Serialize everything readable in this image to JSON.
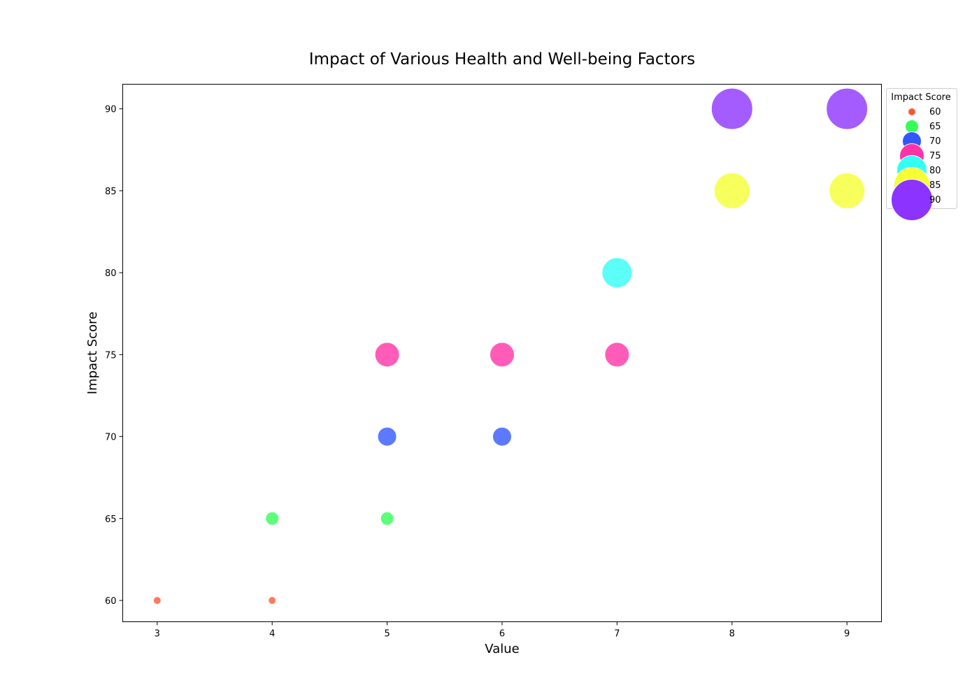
{
  "chart_data": {
    "type": "scatter",
    "title": "Impact of Various Health and Well-being Factors",
    "xlabel": "Value",
    "ylabel": "Impact Score",
    "xlim": [
      2.7,
      9.3
    ],
    "ylim": [
      58.7,
      91.5
    ],
    "xticks": [
      3,
      4,
      5,
      6,
      7,
      8,
      9
    ],
    "yticks": [
      60,
      65,
      70,
      75,
      80,
      85,
      90
    ],
    "grid": false,
    "marker_size_by": "Impact Score",
    "marker_color_by": "Impact Score",
    "legend": {
      "title": "Impact Score",
      "placement": "outside-top-right",
      "entries": [
        60,
        65,
        70,
        75,
        80,
        85,
        90
      ]
    },
    "colors": {
      "60": "#ff5733",
      "65": "#33ff57",
      "70": "#3357ff",
      "75": "#ff33a8",
      "80": "#33fff5",
      "85": "#f5ff33",
      "90": "#8d33ff"
    },
    "point_alpha": 0.8,
    "points": [
      {
        "x": 3,
        "y": 60
      },
      {
        "x": 4,
        "y": 60
      },
      {
        "x": 4,
        "y": 65
      },
      {
        "x": 5,
        "y": 65
      },
      {
        "x": 5,
        "y": 70
      },
      {
        "x": 6,
        "y": 70
      },
      {
        "x": 5,
        "y": 75
      },
      {
        "x": 6,
        "y": 75
      },
      {
        "x": 7,
        "y": 75
      },
      {
        "x": 7,
        "y": 80
      },
      {
        "x": 8,
        "y": 85
      },
      {
        "x": 9,
        "y": 85
      },
      {
        "x": 8,
        "y": 90
      },
      {
        "x": 9,
        "y": 90
      }
    ]
  }
}
